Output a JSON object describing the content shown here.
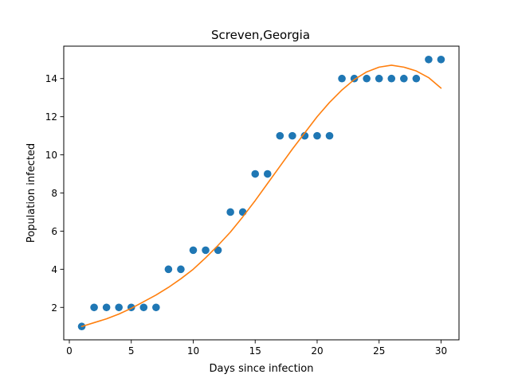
{
  "chart_data": {
    "type": "scatter",
    "title": "Screven,Georgia",
    "xlabel": "Days since infection",
    "ylabel": "Population infected",
    "xlim": [
      -0.45,
      31.45
    ],
    "ylim": [
      0.3,
      15.7
    ],
    "xticks": [
      0,
      5,
      10,
      15,
      20,
      25,
      30
    ],
    "yticks": [
      2,
      4,
      6,
      8,
      10,
      12,
      14
    ],
    "grid": false,
    "series": [
      {
        "kind": "scatter",
        "color": "#1f77b4",
        "x": [
          1,
          2,
          3,
          4,
          5,
          6,
          7,
          8,
          9,
          10,
          11,
          12,
          13,
          14,
          15,
          16,
          17,
          18,
          19,
          20,
          21,
          22,
          23,
          24,
          25,
          26,
          27,
          28,
          29,
          30
        ],
        "y": [
          1,
          2,
          2,
          2,
          2,
          2,
          2,
          4,
          4,
          5,
          5,
          5,
          7,
          7,
          9,
          9,
          11,
          11,
          11,
          11,
          11,
          14,
          14,
          14,
          14,
          14,
          14,
          14,
          15,
          15
        ]
      },
      {
        "kind": "line",
        "color": "#ff7f0e",
        "x": [
          1,
          2,
          3,
          4,
          5,
          6,
          7,
          8,
          9,
          10,
          11,
          12,
          13,
          14,
          15,
          16,
          17,
          18,
          19,
          20,
          21,
          22,
          23,
          24,
          25,
          26,
          27,
          28,
          29,
          30
        ],
        "y": [
          1.0,
          1.2,
          1.4,
          1.65,
          1.95,
          2.3,
          2.65,
          3.05,
          3.5,
          4.0,
          4.6,
          5.25,
          5.95,
          6.75,
          7.6,
          8.5,
          9.4,
          10.3,
          11.15,
          12.0,
          12.75,
          13.4,
          13.95,
          14.35,
          14.6,
          14.7,
          14.6,
          14.4,
          14.05,
          13.5
        ]
      }
    ]
  }
}
